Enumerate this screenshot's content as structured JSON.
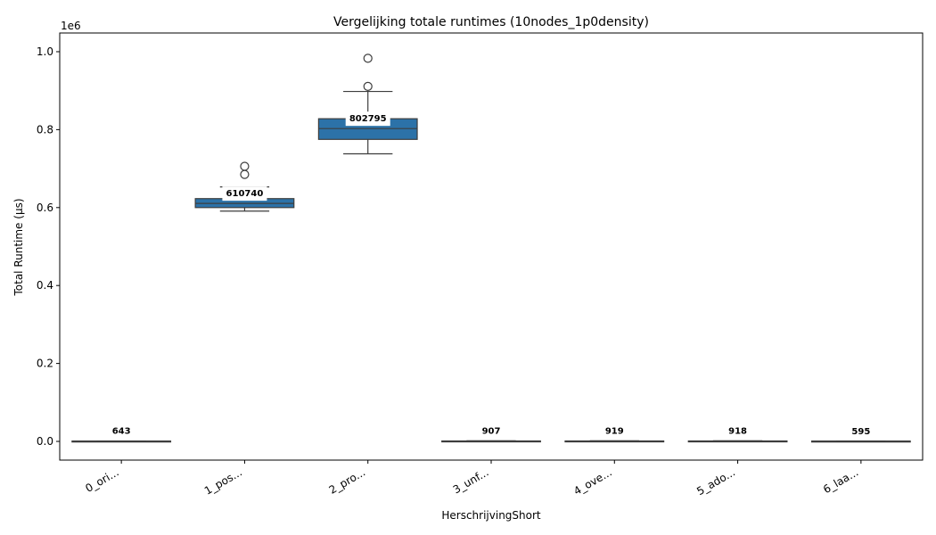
{
  "chart_data": {
    "type": "box",
    "title": "Vergelijking totale runtimes (10nodes_1p0density)",
    "xlabel": "HerschrijvingShort",
    "ylabel": "Total Runtime (µs)",
    "y_offset_label": "1e6",
    "ylim": [
      -48000,
      1048000
    ],
    "yticks": [
      0.0,
      200000,
      400000,
      600000,
      800000,
      1000000
    ],
    "ytick_labels": [
      "0.0",
      "0.2",
      "0.4",
      "0.6",
      "0.8",
      "1.0"
    ],
    "grid": false,
    "box_color": "#2c72a8",
    "categories": [
      "0_ori...",
      "1_pos...",
      "2_pro...",
      "3_unf...",
      "4_ove...",
      "5_ado...",
      "6_laa..."
    ],
    "boxes": [
      {
        "whisker_low": 300,
        "q1": 450,
        "median": 643,
        "q3": 800,
        "whisker_high": 1100,
        "outliers": [],
        "median_label": "643"
      },
      {
        "whisker_low": 591000,
        "q1": 600000,
        "median": 610740,
        "q3": 623000,
        "whisker_high": 653000,
        "outliers": [
          685000,
          706000
        ],
        "median_label": "610740"
      },
      {
        "whisker_low": 738000,
        "q1": 775000,
        "median": 802795,
        "q3": 828000,
        "whisker_high": 898000,
        "outliers": [
          911000,
          983000
        ],
        "median_label": "802795"
      },
      {
        "whisker_low": 500,
        "q1": 700,
        "median": 907,
        "q3": 1100,
        "whisker_high": 1400,
        "outliers": [],
        "median_label": "907"
      },
      {
        "whisker_low": 500,
        "q1": 700,
        "median": 919,
        "q3": 1100,
        "whisker_high": 1400,
        "outliers": [],
        "median_label": "919"
      },
      {
        "whisker_low": 500,
        "q1": 700,
        "median": 918,
        "q3": 1100,
        "whisker_high": 1400,
        "outliers": [],
        "median_label": "918"
      },
      {
        "whisker_low": 300,
        "q1": 450,
        "median": 595,
        "q3": 750,
        "whisker_high": 1000,
        "outliers": [],
        "median_label": "595"
      }
    ]
  }
}
